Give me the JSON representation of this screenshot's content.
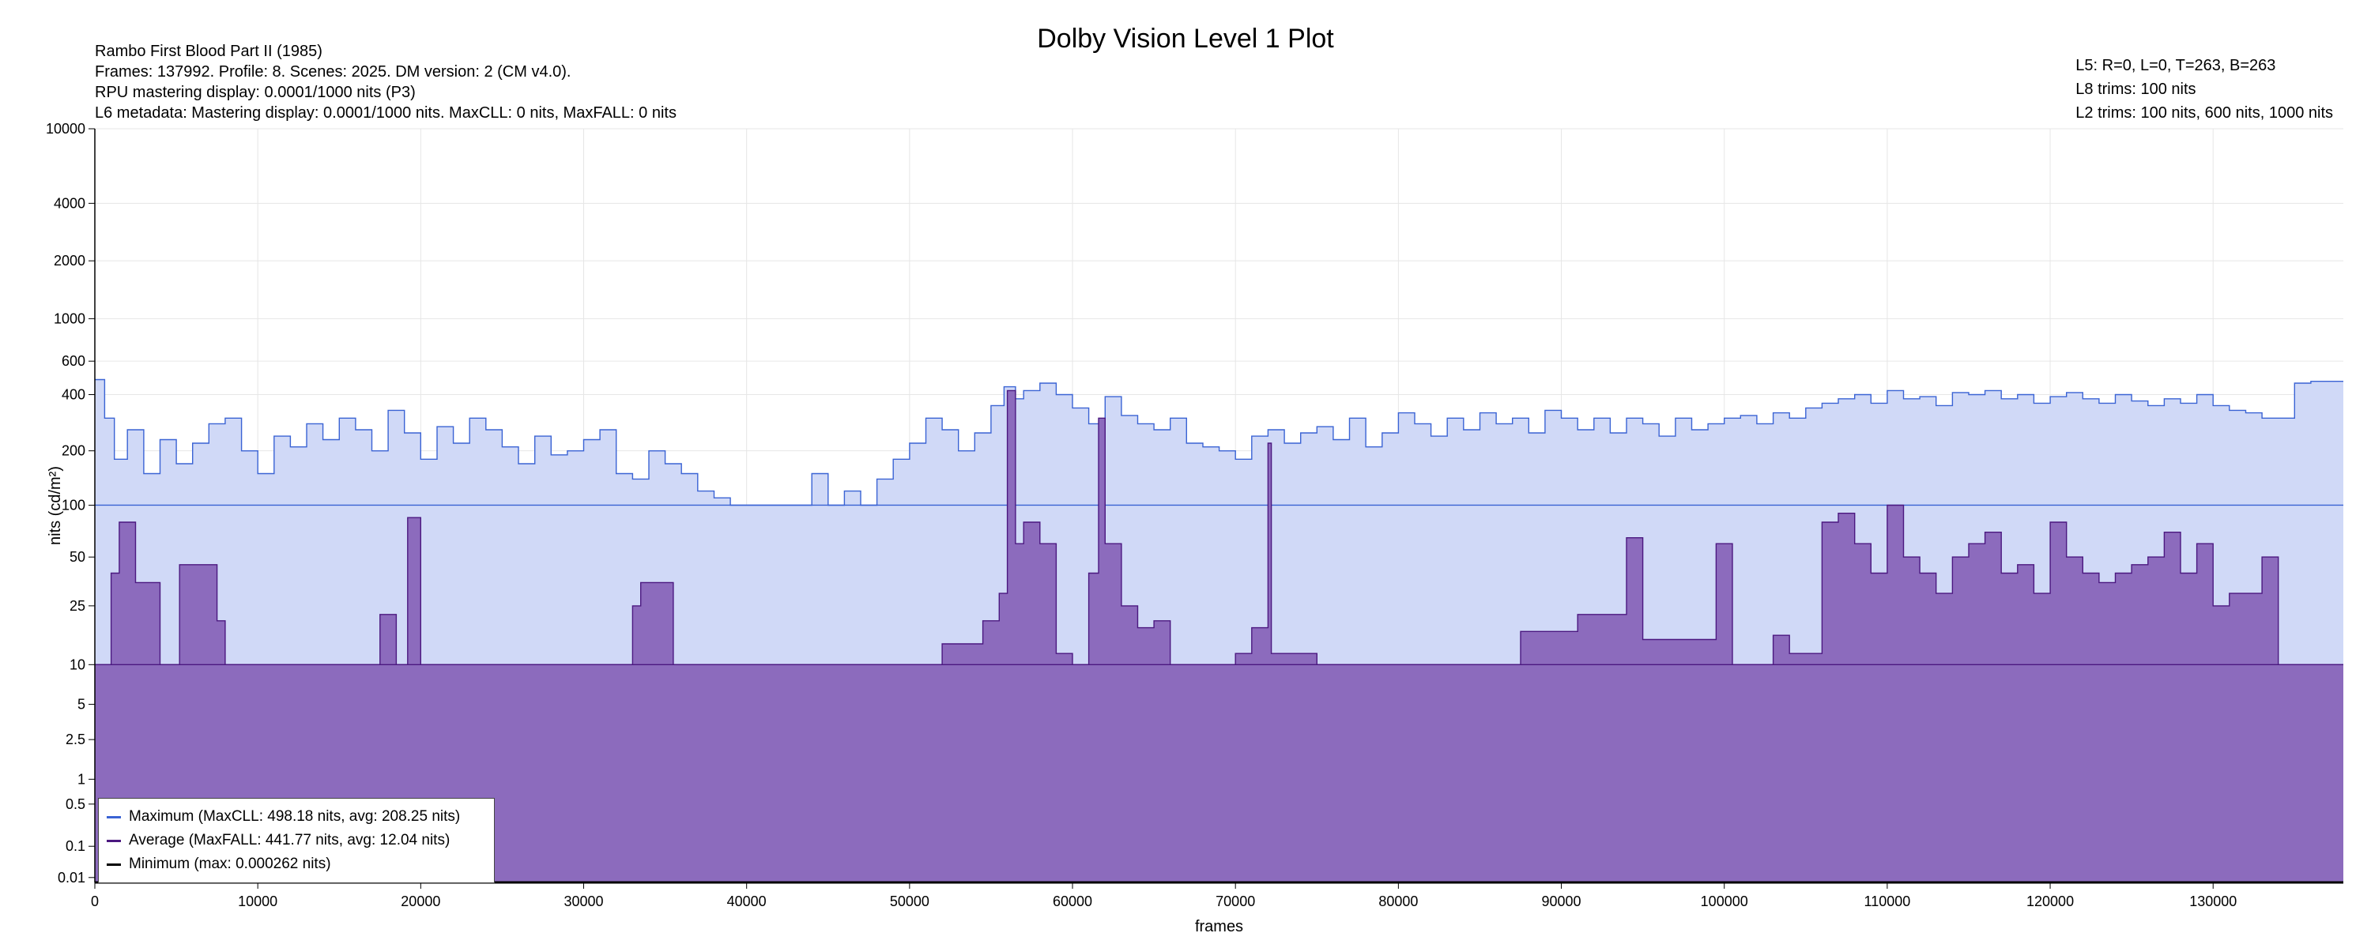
{
  "meta_left": [
    "Rambo First Blood Part II (1985)",
    "Frames: 137992. Profile: 8. Scenes: 2025. DM version: 2 (CM v4.0).",
    "RPU mastering display: 0.0001/1000 nits  (P3)",
    "L6 metadata: Mastering display: 0.0001/1000 nits. MaxCLL: 0 nits, MaxFALL: 0 nits"
  ],
  "meta_right": [
    "L5: R=0, L=0, T=263, B=263",
    "L8 trims: 100 nits",
    "L2 trims: 100 nits, 600 nits, 1000 nits"
  ],
  "colors": {
    "max_line": "#3a63d4",
    "max_fill": "#d0d9f7",
    "avg_line": "#4b1880",
    "avg_fill": "#8c6bbd",
    "min_line": "#000000",
    "grid": "#e6e6e6"
  },
  "chart_data": {
    "type": "area",
    "title": "Dolby Vision Level 1 Plot",
    "xlabel": "frames",
    "ylabel": "nits (cd/m²)",
    "xlim": [
      0,
      137992
    ],
    "ylim": [
      0.005,
      10000
    ],
    "y_scale": "pq",
    "grid": true,
    "legend_position": "bottom-left",
    "x_ticks": [
      0,
      10000,
      20000,
      30000,
      40000,
      50000,
      60000,
      70000,
      80000,
      90000,
      100000,
      110000,
      120000,
      130000
    ],
    "x_tick_labels": [
      "0",
      "10000",
      "20000",
      "30000",
      "40000",
      "50000",
      "60000",
      "70000",
      "80000",
      "90000",
      "100000",
      "110000",
      "120000",
      "130000"
    ],
    "y_ticks": [
      0.01,
      0.1,
      0.5,
      1,
      2.5,
      5,
      10,
      25,
      50,
      100,
      200,
      400,
      600,
      1000,
      2000,
      4000,
      10000
    ],
    "y_tick_labels": [
      "0.01",
      "0.1",
      "0.5",
      "1",
      "2.5",
      "5",
      "10",
      "25",
      "50",
      "100",
      "200",
      "400",
      "600",
      "1000",
      "2000",
      "4000",
      "10000"
    ],
    "series": [
      {
        "name": "Maximum (MaxCLL: 498.18 nits, avg: 208.25 nits)",
        "baseline": 100,
        "x": [
          0,
          600,
          1200,
          2000,
          3000,
          4000,
          5000,
          6000,
          7000,
          8000,
          9000,
          10000,
          11000,
          12000,
          13000,
          14000,
          15000,
          16000,
          17000,
          18000,
          19000,
          20000,
          21000,
          22000,
          23000,
          24000,
          25000,
          26000,
          27000,
          28000,
          29000,
          30000,
          31000,
          32000,
          33000,
          34000,
          35000,
          36000,
          37000,
          38000,
          39000,
          40000,
          41000,
          42000,
          43000,
          44000,
          45000,
          46000,
          47000,
          48000,
          49000,
          50000,
          51000,
          52000,
          53000,
          54000,
          55000,
          55800,
          56500,
          57000,
          58000,
          59000,
          60000,
          61000,
          62000,
          63000,
          64000,
          65000,
          66000,
          67000,
          68000,
          69000,
          70000,
          71000,
          72000,
          73000,
          74000,
          75000,
          76000,
          77000,
          78000,
          79000,
          80000,
          81000,
          82000,
          83000,
          84000,
          85000,
          86000,
          87000,
          88000,
          89000,
          90000,
          91000,
          92000,
          93000,
          94000,
          95000,
          96000,
          97000,
          98000,
          99000,
          100000,
          101000,
          102000,
          103000,
          104000,
          105000,
          106000,
          107000,
          108000,
          109000,
          110000,
          111000,
          112000,
          113000,
          114000,
          115000,
          116000,
          117000,
          118000,
          119000,
          120000,
          121000,
          122000,
          123000,
          124000,
          125000,
          126000,
          127000,
          128000,
          129000,
          130000,
          131000,
          132000,
          133000,
          134000,
          135000,
          136000,
          137992
        ],
        "values": [
          480,
          300,
          180,
          260,
          150,
          230,
          170,
          220,
          280,
          300,
          200,
          150,
          240,
          210,
          280,
          230,
          300,
          260,
          200,
          330,
          250,
          180,
          270,
          220,
          300,
          260,
          210,
          170,
          240,
          190,
          200,
          230,
          260,
          150,
          140,
          200,
          170,
          150,
          120,
          110,
          100,
          100,
          100,
          100,
          100,
          150,
          100,
          120,
          100,
          140,
          180,
          220,
          300,
          260,
          200,
          250,
          350,
          440,
          380,
          420,
          460,
          400,
          340,
          280,
          390,
          310,
          280,
          260,
          300,
          220,
          210,
          200,
          180,
          240,
          260,
          220,
          250,
          270,
          230,
          300,
          210,
          250,
          320,
          280,
          240,
          300,
          260,
          320,
          280,
          300,
          250,
          330,
          300,
          260,
          300,
          250,
          300,
          280,
          240,
          300,
          260,
          280,
          300,
          310,
          280,
          320,
          300,
          340,
          360,
          380,
          400,
          360,
          420,
          380,
          390,
          350,
          410,
          400,
          420,
          380,
          400,
          360,
          390,
          410,
          380,
          360,
          400,
          370,
          350,
          380,
          360,
          400,
          350,
          330,
          320,
          300,
          300,
          460,
          470,
          470
        ]
      },
      {
        "name": "Average (MaxFALL: 441.77 nits, avg: 12.04 nits)",
        "baseline": 10,
        "x": [
          0,
          1000,
          1500,
          2500,
          4000,
          5200,
          7500,
          8000,
          10000,
          17500,
          18500,
          19200,
          20000,
          33000,
          33500,
          35500,
          40000,
          52000,
          54500,
          55500,
          56000,
          56500,
          57000,
          58000,
          59000,
          60000,
          61000,
          61600,
          62000,
          63000,
          64000,
          65000,
          66000,
          70000,
          71000,
          72000,
          72200,
          75000,
          87500,
          91000,
          94000,
          95000,
          99500,
          100500,
          103000,
          104000,
          105000,
          106000,
          107000,
          108000,
          109000,
          110000,
          111000,
          112000,
          113000,
          114000,
          115000,
          116000,
          117000,
          118000,
          119000,
          120000,
          121000,
          122000,
          123000,
          124000,
          125000,
          126000,
          127000,
          128000,
          129000,
          130000,
          131000,
          132000,
          133000,
          134000,
          137992
        ],
        "values": [
          10,
          40,
          80,
          35,
          10,
          45,
          20,
          10,
          10,
          22,
          10,
          85,
          10,
          25,
          35,
          10,
          10,
          14,
          20,
          30,
          420,
          60,
          80,
          60,
          12,
          10,
          40,
          300,
          60,
          25,
          18,
          20,
          10,
          12,
          18,
          220,
          12,
          10,
          17,
          22,
          65,
          15,
          60,
          10,
          16,
          12,
          12,
          80,
          90,
          60,
          40,
          100,
          50,
          40,
          30,
          50,
          60,
          70,
          40,
          45,
          30,
          80,
          50,
          40,
          35,
          40,
          45,
          50,
          70,
          40,
          60,
          25,
          30,
          30,
          50,
          10,
          10
        ]
      },
      {
        "name": "Minimum (max: 0.000262 nits)",
        "baseline": 0.005,
        "x": [
          0,
          137992
        ],
        "values": [
          0.005,
          0.005
        ]
      }
    ]
  }
}
